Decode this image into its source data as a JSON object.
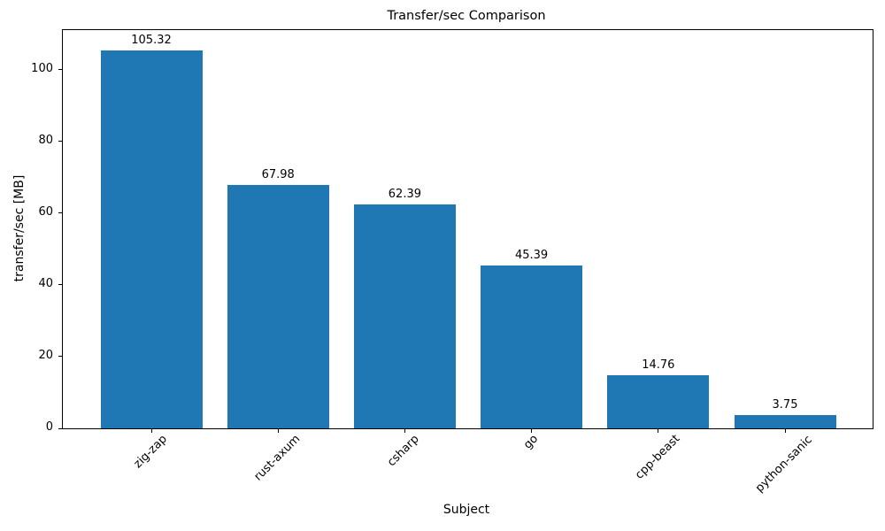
{
  "chart_data": {
    "type": "bar",
    "title": "Transfer/sec Comparison",
    "xlabel": "Subject",
    "ylabel": "transfer/sec [MB]",
    "categories": [
      "zig-zap",
      "rust-axum",
      "csharp",
      "go",
      "cpp-beast",
      "python-sanic"
    ],
    "values": [
      105.32,
      67.98,
      62.39,
      45.39,
      14.76,
      3.75
    ],
    "value_labels": [
      "105.32",
      "67.98",
      "62.39",
      "45.39",
      "14.76",
      "3.75"
    ],
    "series": [
      {
        "name": "transfer/sec",
        "values": [
          105.32,
          67.98,
          62.39,
          45.39,
          14.76,
          3.75
        ]
      }
    ],
    "ylim": [
      0,
      111.1
    ],
    "yticks": [
      0,
      20,
      40,
      60,
      80,
      100
    ],
    "xtick_rotation_deg": 45,
    "grid": false,
    "legend": null,
    "bar_color": "#1f77b4",
    "spine_color": "#000000",
    "text_color": "#000000",
    "background_color": "#ffffff"
  }
}
